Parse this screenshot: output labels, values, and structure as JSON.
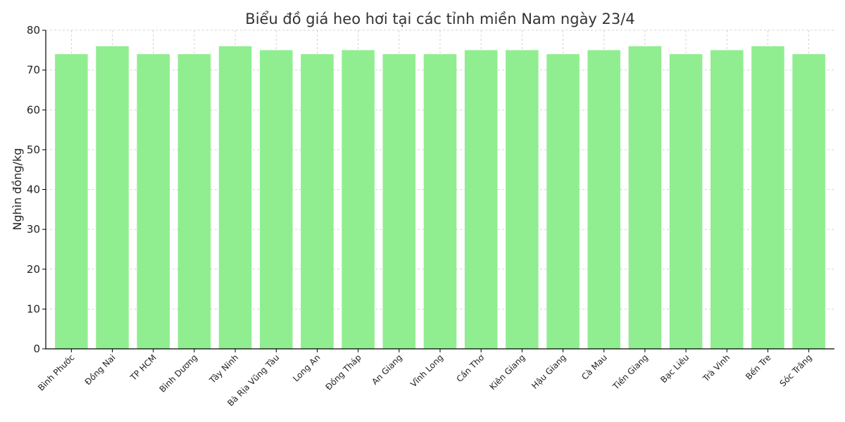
{
  "chart_data": {
    "type": "bar",
    "title": "Biểu đồ giá heo hơi tại các tỉnh miền Nam ngày 23/4",
    "xlabel": "",
    "ylabel": "Nghìn đồng/kg",
    "ylim": [
      0,
      80
    ],
    "yticks": [
      0,
      10,
      20,
      30,
      40,
      50,
      60,
      70,
      80
    ],
    "grid": true,
    "bar_color": "#90ee90",
    "categories": [
      "Bình Phước",
      "Đồng Nai",
      "TP HCM",
      "Bình Dương",
      "Tây Ninh",
      "Bà Rịa  Vũng Tàu",
      "Long An",
      "Đồng Tháp",
      "An Giang",
      "Vĩnh Long",
      "Cần Thơ",
      "Kiên Giang",
      "Hậu Giang",
      "Cà Mau",
      "Tiền Giang",
      "Bạc Liêu",
      "Trà Vinh",
      "Bến Tre",
      "Sóc Trăng"
    ],
    "values": [
      74,
      76,
      74,
      74,
      76,
      75,
      74,
      75,
      74,
      74,
      75,
      75,
      74,
      75,
      76,
      74,
      75,
      76,
      74
    ]
  }
}
